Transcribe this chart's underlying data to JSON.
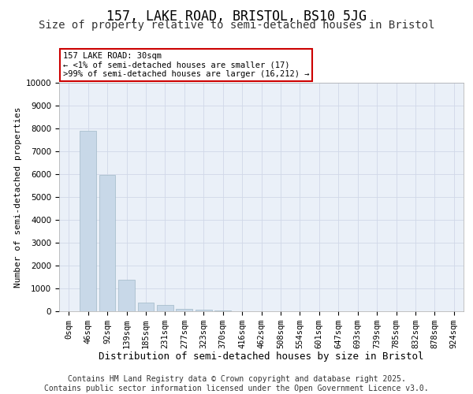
{
  "title1": "157, LAKE ROAD, BRISTOL, BS10 5JG",
  "title2": "Size of property relative to semi-detached houses in Bristol",
  "xlabel": "Distribution of semi-detached houses by size in Bristol",
  "ylabel": "Number of semi-detached properties",
  "bar_labels": [
    "0sqm",
    "46sqm",
    "92sqm",
    "139sqm",
    "185sqm",
    "231sqm",
    "277sqm",
    "323sqm",
    "370sqm",
    "416sqm",
    "462sqm",
    "508sqm",
    "554sqm",
    "601sqm",
    "647sqm",
    "693sqm",
    "739sqm",
    "785sqm",
    "832sqm",
    "878sqm",
    "924sqm"
  ],
  "bar_values": [
    17,
    7900,
    5980,
    1380,
    380,
    270,
    115,
    55,
    18,
    5,
    3,
    2,
    1,
    0,
    0,
    0,
    0,
    0,
    0,
    0,
    0
  ],
  "bar_color": "#c8d8e8",
  "bar_edge_color": "#a0b8c8",
  "highlight_bar_index": 0,
  "highlight_color": "#cc2222",
  "annotation_text": "157 LAKE ROAD: 30sqm\n← <1% of semi-detached houses are smaller (17)\n>99% of semi-detached houses are larger (16,212) →",
  "annotation_box_color": "#ffffff",
  "annotation_box_edge": "#cc0000",
  "ylim": [
    0,
    10000
  ],
  "yticks": [
    0,
    1000,
    2000,
    3000,
    4000,
    5000,
    6000,
    7000,
    8000,
    9000,
    10000
  ],
  "grid_color": "#d0d8e8",
  "bg_color": "#eaf0f8",
  "footer_text": "Contains HM Land Registry data © Crown copyright and database right 2025.\nContains public sector information licensed under the Open Government Licence v3.0.",
  "title1_fontsize": 12,
  "title2_fontsize": 10,
  "xlabel_fontsize": 9,
  "ylabel_fontsize": 8,
  "tick_fontsize": 7.5,
  "footer_fontsize": 7
}
